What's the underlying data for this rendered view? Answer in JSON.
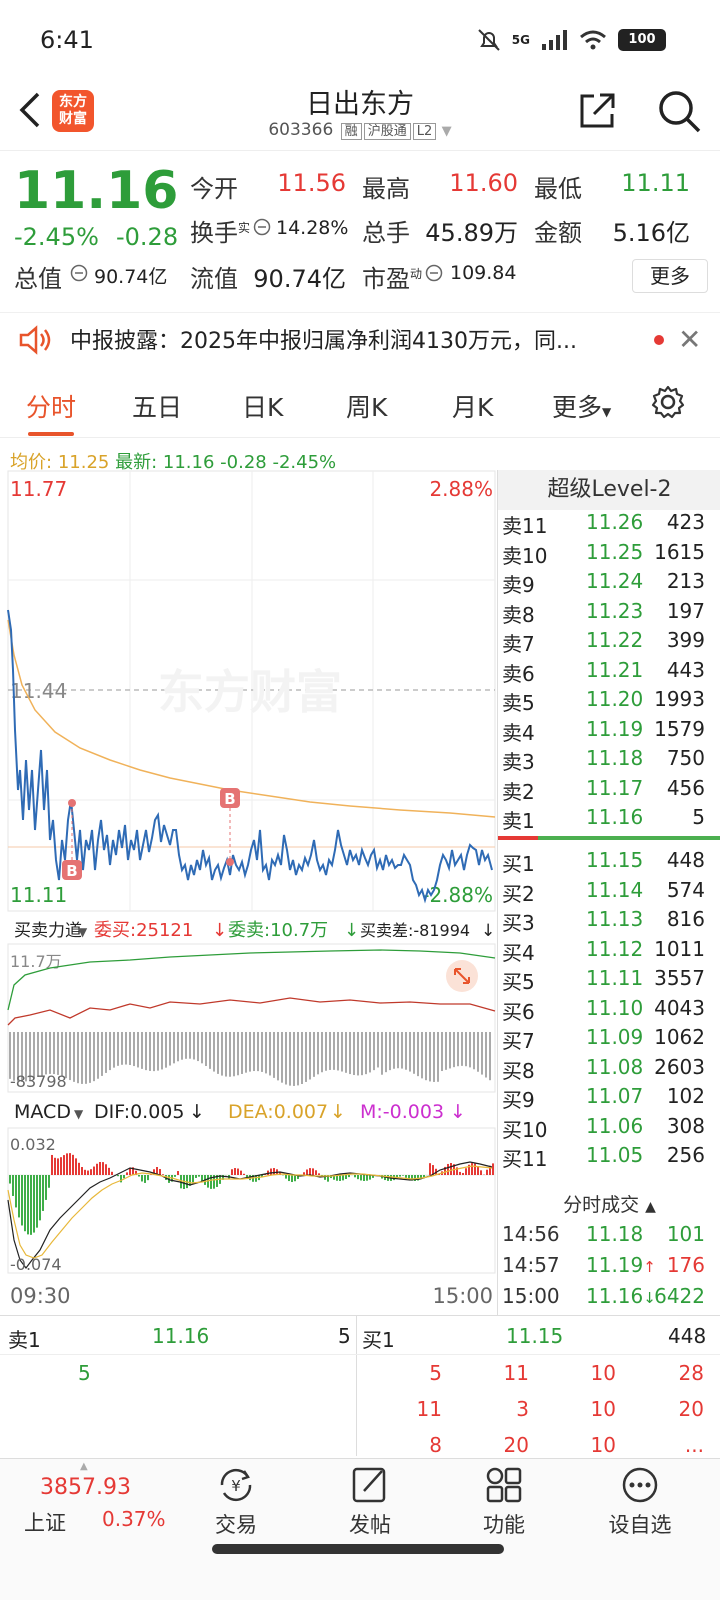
{
  "status_bar": {
    "time": "6:41",
    "network": "5G",
    "battery": "100",
    "wifi_sub": "6"
  },
  "header": {
    "logo_text": "东方财富",
    "title": "日出东方",
    "code": "603366",
    "tags": [
      "融",
      "沪股通",
      "L2"
    ]
  },
  "quote": {
    "price": "11.16",
    "change_pct": "-2.45%",
    "change": "-0.28",
    "stats": [
      {
        "label": "今开",
        "value": "11.56",
        "color": "red"
      },
      {
        "label": "最高",
        "value": "11.60",
        "color": "red"
      },
      {
        "label": "最低",
        "value": "11.11",
        "color": "green"
      },
      {
        "label": "换手",
        "sup": "实",
        "value": "14.28%"
      },
      {
        "label": "总手",
        "value": "45.89万"
      },
      {
        "label": "金额",
        "value": "5.16亿"
      },
      {
        "label": "总值",
        "value": "90.74亿"
      },
      {
        "label": "流值",
        "value": "90.74亿"
      },
      {
        "label": "市盈",
        "sup": "动",
        "value": "109.84"
      }
    ],
    "more_label": "更多"
  },
  "notice": {
    "text": "中报披露：2025年中报归属净利润4130万元，同..."
  },
  "tabs": [
    "分时",
    "五日",
    "日K",
    "周K",
    "月K",
    "更多"
  ],
  "avg_line": {
    "avg_label": "均价:",
    "avg": "11.25",
    "latest_label": "最新:",
    "latest": "11.16",
    "chg": "-0.28",
    "pct": "-2.45%"
  },
  "chart": {
    "y_top": "11.77",
    "y_top_pct": "2.88%",
    "y_mid": "11.44",
    "y_bottom": "11.11",
    "y_bottom_pct": "-2.88%",
    "watermark": "东方财富",
    "buy_marker": "B",
    "force_label": "买卖力道",
    "wei_mai_label": "委买:25121",
    "wei_mai_arrow": "↓",
    "wei_mai_sell_label": "委卖:10.7万",
    "wei_mai_sell_arrow": "↓",
    "diff_label": "买卖差:-81994",
    "diff_arrow": "↓",
    "force_top": "11.7万",
    "force_bottom": "-83798",
    "macd_label": "MACD",
    "dif": "DIF:0.005",
    "dif_arrow": "↓",
    "dea": "DEA:0.007",
    "dea_arrow": "↓",
    "m": "M:-0.003",
    "m_arrow": "↓",
    "macd_top": "0.032",
    "macd_bottom": "-0.074",
    "time_start": "09:30",
    "time_end": "15:00"
  },
  "order_book": {
    "title": "超级Level-2",
    "sell": [
      {
        "label": "卖11",
        "price": "11.26",
        "vol": "423"
      },
      {
        "label": "卖10",
        "price": "11.25",
        "vol": "1615"
      },
      {
        "label": "卖9",
        "price": "11.24",
        "vol": "213"
      },
      {
        "label": "卖8",
        "price": "11.23",
        "vol": "197"
      },
      {
        "label": "卖7",
        "price": "11.22",
        "vol": "399"
      },
      {
        "label": "卖6",
        "price": "11.21",
        "vol": "443"
      },
      {
        "label": "卖5",
        "price": "11.20",
        "vol": "1993"
      },
      {
        "label": "卖4",
        "price": "11.19",
        "vol": "1579"
      },
      {
        "label": "卖3",
        "price": "11.18",
        "vol": "750"
      },
      {
        "label": "卖2",
        "price": "11.17",
        "vol": "456"
      },
      {
        "label": "卖1",
        "price": "11.16",
        "vol": "5"
      }
    ],
    "buy": [
      {
        "label": "买1",
        "price": "11.15",
        "vol": "448"
      },
      {
        "label": "买2",
        "price": "11.14",
        "vol": "574"
      },
      {
        "label": "买3",
        "price": "11.13",
        "vol": "816"
      },
      {
        "label": "买4",
        "price": "11.12",
        "vol": "1011"
      },
      {
        "label": "买5",
        "price": "11.11",
        "vol": "3557"
      },
      {
        "label": "买6",
        "price": "11.10",
        "vol": "4043"
      },
      {
        "label": "买7",
        "price": "11.09",
        "vol": "1062"
      },
      {
        "label": "买8",
        "price": "11.08",
        "vol": "2603"
      },
      {
        "label": "买9",
        "price": "11.07",
        "vol": "102"
      },
      {
        "label": "买10",
        "price": "11.06",
        "vol": "308"
      },
      {
        "label": "买11",
        "price": "11.05",
        "vol": "256"
      }
    ],
    "ticks_title": "分时成交",
    "ticks": [
      {
        "time": "14:56",
        "price": "11.18",
        "dir": "",
        "vol": "101",
        "color": "green"
      },
      {
        "time": "14:57",
        "price": "11.19",
        "dir": "↑",
        "vol": "176",
        "color": "red"
      },
      {
        "time": "15:00",
        "price": "11.16",
        "dir": "↓",
        "vol": "6422",
        "color": "green"
      }
    ]
  },
  "level1": {
    "sell_label": "卖1",
    "sell_price": "11.16",
    "sell_vol": "5",
    "buy_label": "买1",
    "buy_price": "11.15",
    "buy_vol": "448",
    "sell_queue": [
      "5"
    ],
    "buy_queue": [
      "5",
      "11",
      "10",
      "28",
      "11",
      "3",
      "10",
      "20",
      "8",
      "20",
      "10",
      "..."
    ]
  },
  "nav": {
    "index_value": "3857.93",
    "index_name": "上证",
    "index_pct": "0.37%",
    "items": [
      "交易",
      "发帖",
      "功能",
      "设自选"
    ]
  }
}
